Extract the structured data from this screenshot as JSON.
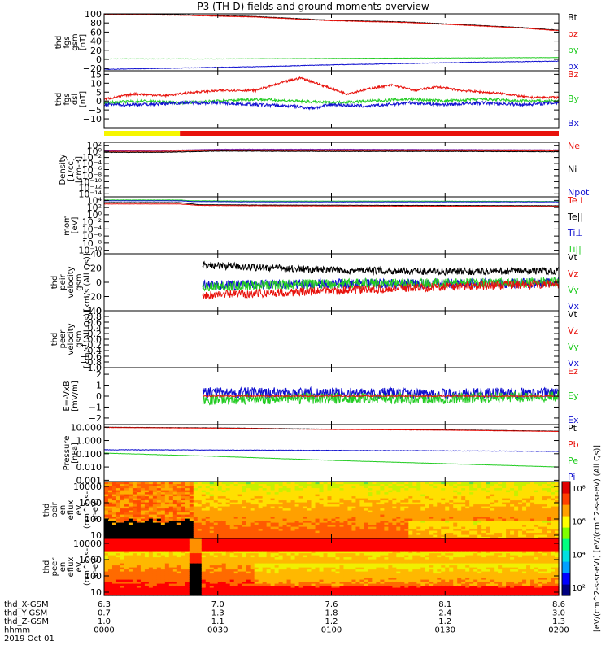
{
  "title": "P3 (TH-D) fields and ground moments overview",
  "colors": {
    "black": "#000000",
    "red": "#e8120c",
    "green": "#22cc22",
    "blue": "#1010d0",
    "yellow": "#f6f600",
    "orange": "#ff9900",
    "purple": "#7a1fa2",
    "dark_red": "#b00000",
    "light_green": "#33dd33"
  },
  "chart_data": [
    {
      "id": "fgs_gsm",
      "type": "line",
      "ylabel": [
        "thd",
        "fgs",
        "gsm",
        "[nT]"
      ],
      "ylim": [
        -25,
        100
      ],
      "ticks": [
        {
          "v": 100,
          "t": "100"
        },
        {
          "v": 80,
          "t": "80"
        },
        {
          "v": 60,
          "t": "60"
        },
        {
          "v": 40,
          "t": "40"
        },
        {
          "v": 20,
          "t": "20"
        },
        {
          "v": 0,
          "t": "0"
        },
        {
          "v": -20,
          "t": "−20"
        }
      ],
      "legend": [
        {
          "name": "Bt",
          "color": "#000000"
        },
        {
          "name": "bz",
          "color": "#e8120c"
        },
        {
          "name": "by",
          "color": "#22cc22"
        },
        {
          "name": "bx",
          "color": "#1010d0"
        }
      ],
      "series": [
        {
          "color": "#000000",
          "x": [
            0,
            10,
            20,
            30,
            40,
            50,
            60,
            70,
            80,
            90,
            100,
            110,
            120
          ],
          "y": [
            99,
            99,
            98,
            96,
            94,
            90,
            86,
            84,
            82,
            78,
            74,
            70,
            64
          ],
          "noise": 0.5
        },
        {
          "color": "#e8120c",
          "x": [
            0,
            10,
            20,
            30,
            40,
            50,
            60,
            70,
            80,
            90,
            100,
            110,
            120
          ],
          "y": [
            98,
            98,
            97,
            95,
            93,
            89,
            85,
            83,
            81,
            77,
            73,
            69,
            63
          ],
          "noise": 0.5
        },
        {
          "color": "#22cc22",
          "x": [
            0,
            30,
            60,
            90,
            120
          ],
          "y": [
            1,
            1,
            2,
            3,
            4
          ],
          "noise": 0.4
        },
        {
          "color": "#1010d0",
          "x": [
            0,
            20,
            40,
            60,
            80,
            100,
            120
          ],
          "y": [
            -22,
            -19,
            -16,
            -12,
            -9,
            -6,
            -4
          ],
          "noise": 0.6
        }
      ]
    },
    {
      "id": "fgs_dsl",
      "type": "line",
      "ylabel": [
        "thd",
        "fgs",
        "dsl",
        "[nT]"
      ],
      "ylim": [
        -15,
        17
      ],
      "ticks": [
        {
          "v": 15,
          "t": "15"
        },
        {
          "v": 10,
          "t": "10"
        },
        {
          "v": 5,
          "t": "5"
        },
        {
          "v": 0,
          "t": "0"
        },
        {
          "v": -5,
          "t": "−5"
        },
        {
          "v": -10,
          "t": "−10"
        }
      ],
      "legend": [
        {
          "name": "Bz",
          "color": "#e8120c"
        },
        {
          "name": "By",
          "color": "#22cc22"
        },
        {
          "name": "Bx",
          "color": "#1010d0"
        }
      ],
      "series": [
        {
          "color": "#e8120c",
          "x": [
            0,
            8,
            16,
            24,
            32,
            40,
            48,
            52,
            56,
            60,
            64,
            70,
            76,
            82,
            88,
            94,
            100,
            106,
            112,
            120
          ],
          "y": [
            1,
            4,
            3,
            5,
            6,
            6,
            11,
            13,
            10,
            7,
            4,
            7,
            9,
            6,
            8,
            6,
            5,
            4,
            2,
            2
          ],
          "noise": 0.6
        },
        {
          "color": "#22cc22",
          "x": [
            0,
            10,
            20,
            30,
            40,
            50,
            60,
            70,
            80,
            90,
            100,
            110,
            120
          ],
          "y": [
            -1,
            0,
            -1,
            0,
            1,
            0,
            -1,
            0,
            1,
            0,
            1,
            0,
            0
          ],
          "noise": 0.8
        },
        {
          "color": "#1010d0",
          "x": [
            0,
            10,
            20,
            30,
            40,
            50,
            55,
            60,
            70,
            80,
            90,
            100,
            110,
            120
          ],
          "y": [
            -2,
            -2,
            -1,
            -1,
            -2,
            -3,
            -4,
            -2,
            -3,
            -1,
            -2,
            -1,
            -2,
            -1
          ],
          "noise": 0.9
        }
      ]
    },
    {
      "id": "density",
      "type": "line",
      "log": true,
      "ylabel": [
        "Density",
        "[1/cc]",
        "[cm-3]"
      ],
      "ylim": [
        -15,
        3
      ],
      "ticks": [
        {
          "v": 2,
          "t": "10²"
        },
        {
          "v": 0,
          "t": "10⁰"
        },
        {
          "v": -2,
          "t": "10⁻²"
        },
        {
          "v": -4,
          "t": "10⁻⁴"
        },
        {
          "v": -6,
          "t": "10⁻⁶"
        },
        {
          "v": -8,
          "t": "10⁻⁸"
        },
        {
          "v": -10,
          "t": "10⁻¹⁰"
        },
        {
          "v": -12,
          "t": "10⁻¹²"
        },
        {
          "v": -14,
          "t": "10⁻¹⁴"
        }
      ],
      "legend": [
        {
          "name": "Ne",
          "color": "#e8120c"
        },
        {
          "name": "Ni",
          "color": "#000000"
        },
        {
          "name": "Npot",
          "color": "#1010d0"
        }
      ],
      "series": [
        {
          "color": "#7a1fa2",
          "x": [
            0,
            15,
            30,
            60,
            90,
            120
          ],
          "y": [
            0.2,
            0.3,
            0.7,
            0.7,
            0.6,
            0.5
          ],
          "noise": 0.06
        },
        {
          "color": "#e8120c",
          "x": [
            0,
            15,
            30,
            60,
            90,
            120
          ],
          "y": [
            0,
            0,
            0.3,
            0.3,
            0.2,
            0.2
          ],
          "noise": 0.06
        },
        {
          "color": "#000000",
          "x": [
            0,
            15,
            30,
            60,
            90,
            120
          ],
          "y": [
            -0.3,
            -0.3,
            0.1,
            0.0,
            0.0,
            -0.1
          ],
          "noise": 0.08
        }
      ]
    },
    {
      "id": "temperature",
      "type": "line",
      "log": true,
      "ylabel": [
        "mom",
        "[eV]"
      ],
      "ylim": [
        -11,
        5
      ],
      "ticks": [
        {
          "v": 4,
          "t": "10⁴"
        },
        {
          "v": 2,
          "t": "10²"
        },
        {
          "v": 0,
          "t": "10⁰"
        },
        {
          "v": -2,
          "t": "10⁻²"
        },
        {
          "v": -4,
          "t": "10⁻⁴"
        },
        {
          "v": -6,
          "t": "10⁻⁶"
        },
        {
          "v": -8,
          "t": "10⁻⁸"
        },
        {
          "v": -10,
          "t": "10⁻¹⁰"
        }
      ],
      "legend": [
        {
          "name": "Te⊥",
          "color": "#e8120c"
        },
        {
          "name": "Te||",
          "color": "#000000"
        },
        {
          "name": "Ti⊥",
          "color": "#1010d0"
        },
        {
          "name": "Ti||",
          "color": "#22cc22"
        }
      ],
      "series": [
        {
          "color": "#22cc22",
          "x": [
            0,
            20,
            23,
            40,
            80,
            120
          ],
          "y": [
            4.1,
            4.1,
            3.9,
            3.8,
            3.8,
            3.7
          ],
          "noise": 0.04
        },
        {
          "color": "#1010d0",
          "x": [
            0,
            20,
            23,
            40,
            80,
            120
          ],
          "y": [
            3.9,
            3.9,
            3.7,
            3.6,
            3.6,
            3.6
          ],
          "noise": 0.04
        },
        {
          "color": "#000000",
          "x": [
            0,
            20,
            25,
            40,
            80,
            120
          ],
          "y": [
            3.4,
            3.4,
            2.8,
            2.7,
            2.6,
            2.5
          ],
          "noise": 0.04
        },
        {
          "color": "#e8120c",
          "x": [
            0,
            20,
            25,
            40,
            80,
            120
          ],
          "y": [
            3.0,
            3.0,
            2.6,
            2.5,
            2.4,
            2.3
          ],
          "noise": 0.04
        }
      ]
    },
    {
      "id": "peir_velocity",
      "type": "line",
      "ylabel": [
        "thd",
        "peir",
        "velocity",
        "gsm",
        "[km/s (All Qs)]"
      ],
      "ylim": [
        -40,
        40
      ],
      "ticks": [
        {
          "v": 40,
          "t": "40"
        },
        {
          "v": 20,
          "t": "20"
        },
        {
          "v": 0,
          "t": "0"
        },
        {
          "v": -20,
          "t": "−20"
        },
        {
          "v": -40,
          "t": "−40"
        }
      ],
      "legend": [
        {
          "name": "Vt",
          "color": "#000000"
        },
        {
          "name": "Vz",
          "color": "#e8120c"
        },
        {
          "name": "Vy",
          "color": "#22cc22"
        },
        {
          "name": "Vx",
          "color": "#1010d0"
        }
      ],
      "series": [
        {
          "color": "#1010d0",
          "x": [
            26,
            60,
            90,
            120
          ],
          "y": [
            -4,
            -2,
            -2,
            -1
          ],
          "noise": 7,
          "start": 26
        },
        {
          "color": "#22cc22",
          "x": [
            26,
            60,
            90,
            120
          ],
          "y": [
            -6,
            -2,
            -1,
            0
          ],
          "noise": 7,
          "start": 26
        },
        {
          "color": "#000000",
          "x": [
            26,
            60,
            90,
            120
          ],
          "y": [
            24,
            17,
            15,
            16
          ],
          "noise": 5,
          "start": 26
        },
        {
          "color": "#e8120c",
          "x": [
            26,
            60,
            90,
            120
          ],
          "y": [
            -18,
            -12,
            -6,
            -2
          ],
          "noise": 6,
          "start": 26
        }
      ]
    },
    {
      "id": "peer_velocity",
      "type": "line",
      "ylabel": [
        "thd",
        "peer",
        "velocity",
        "gsm",
        "[km/s (All Qs)]"
      ],
      "ylim": [
        -1,
        1
      ],
      "ticks": [
        {
          "v": 1,
          "t": "1.0"
        },
        {
          "v": 0.8,
          "t": "0.8"
        },
        {
          "v": 0.6,
          "t": "0.6"
        },
        {
          "v": 0.4,
          "t": "0.4"
        },
        {
          "v": 0.2,
          "t": "0.2"
        },
        {
          "v": 0,
          "t": "0.0"
        },
        {
          "v": -0.2,
          "t": "−0.2"
        },
        {
          "v": -0.4,
          "t": "−0.4"
        },
        {
          "v": -0.6,
          "t": "−0.6"
        },
        {
          "v": -0.8,
          "t": "−0.8"
        },
        {
          "v": -1,
          "t": "−1.0"
        }
      ],
      "legend": [
        {
          "name": "Vt",
          "color": "#000000"
        },
        {
          "name": "Vz",
          "color": "#e8120c"
        },
        {
          "name": "Vy",
          "color": "#22cc22"
        },
        {
          "name": "Vx",
          "color": "#1010d0"
        }
      ],
      "series": []
    },
    {
      "id": "exb",
      "type": "line",
      "ylabel": [
        "E=-VxB",
        "[mV/m]"
      ],
      "ylim": [
        -2.6,
        2.6
      ],
      "ticks": [
        {
          "v": 2,
          "t": "2"
        },
        {
          "v": 1,
          "t": "1"
        },
        {
          "v": 0,
          "t": "0"
        },
        {
          "v": -1,
          "t": "−1"
        },
        {
          "v": -2,
          "t": "−2"
        }
      ],
      "legend": [
        {
          "name": "Ez",
          "color": "#e8120c"
        },
        {
          "name": "Ey",
          "color": "#22cc22"
        },
        {
          "name": "Ex",
          "color": "#1010d0"
        }
      ],
      "series": [
        {
          "color": "#1010d0",
          "x": [
            26,
            60,
            90,
            120
          ],
          "y": [
            0.3,
            0.3,
            0.2,
            0.3
          ],
          "noise": 0.5,
          "start": 26
        },
        {
          "color": "#22cc22",
          "x": [
            26,
            60,
            90,
            120
          ],
          "y": [
            -0.3,
            -0.2,
            -0.2,
            0
          ],
          "noise": 0.5,
          "start": 26
        },
        {
          "color": "#e8120c",
          "x": [
            26,
            60,
            90,
            120
          ],
          "y": [
            0,
            0,
            0,
            0
          ],
          "noise": 0.05,
          "start": 26
        }
      ]
    },
    {
      "id": "pressure",
      "type": "line",
      "log": true,
      "ylabel": [
        "Pressure",
        "[nPa]"
      ],
      "ylim": [
        -3.1,
        1.2
      ],
      "ticks": [
        {
          "v": 1,
          "t": "10.000"
        },
        {
          "v": 0,
          "t": "1.000"
        },
        {
          "v": -1,
          "t": "0.100"
        },
        {
          "v": -2,
          "t": "0.010"
        },
        {
          "v": -3,
          "t": "0.001"
        }
      ],
      "legend": [
        {
          "name": "Pt",
          "color": "#000000"
        },
        {
          "name": "Pb",
          "color": "#e8120c"
        },
        {
          "name": "Pe",
          "color": "#22cc22"
        },
        {
          "name": "Pi",
          "color": "#1010d0"
        }
      ],
      "series": [
        {
          "color": "#000000",
          "x": [
            0,
            30,
            60,
            90,
            120
          ],
          "y": [
            1.0,
            0.95,
            0.85,
            0.8,
            0.7
          ],
          "noise": 0.01
        },
        {
          "color": "#e8120c",
          "x": [
            0,
            30,
            60,
            90,
            120
          ],
          "y": [
            0.98,
            0.93,
            0.83,
            0.78,
            0.68
          ],
          "noise": 0.01
        },
        {
          "color": "#1010d0",
          "x": [
            0,
            30,
            60,
            90,
            120
          ],
          "y": [
            -0.7,
            -0.72,
            -0.75,
            -0.78,
            -0.82
          ],
          "noise": 0.02
        },
        {
          "color": "#22cc22",
          "x": [
            0,
            30,
            60,
            90,
            120
          ],
          "y": [
            -0.95,
            -1.2,
            -1.5,
            -1.75,
            -2.0
          ],
          "noise": 0.01
        }
      ]
    },
    {
      "id": "peir_spec",
      "type": "heatmap",
      "log": true,
      "ylabel": [
        "thd",
        "peir",
        "en",
        "eflux",
        "eV",
        "(cm^2-s-",
        "sr-eV)"
      ],
      "ylim": [
        0.8,
        4.3
      ],
      "ticks": [
        {
          "v": 4,
          "t": "10000"
        },
        {
          "v": 3,
          "t": "1000"
        },
        {
          "v": 2,
          "t": "100"
        },
        {
          "v": 1,
          "t": "10"
        }
      ]
    },
    {
      "id": "peer_spec",
      "type": "heatmap",
      "log": true,
      "ylabel": [
        "thd",
        "peer",
        "en",
        "eflux",
        "eV",
        "(cm^2-s-",
        "sr-eV)"
      ],
      "ylim": [
        0.8,
        4.3
      ],
      "ticks": [
        {
          "v": 4,
          "t": "10000"
        },
        {
          "v": 3,
          "t": "1000"
        },
        {
          "v": 2,
          "t": "100"
        },
        {
          "v": 1,
          "t": "10"
        }
      ]
    }
  ],
  "colorbar": {
    "ticks": [
      {
        "v": 8,
        "t": "10⁸"
      },
      {
        "v": 6,
        "t": "10⁶"
      },
      {
        "v": 4,
        "t": "10⁴"
      },
      {
        "v": 2,
        "t": "10²"
      }
    ],
    "range": [
      1.5,
      8.4
    ],
    "label": "[eV/(cm^2-s-sr-eV)] [eV/(cm^2-s-sr-eV) (All Qs)]"
  },
  "quality_bar": [
    {
      "from": 0,
      "to": 20,
      "color": "#f6f600"
    },
    {
      "from": 20,
      "to": 120,
      "color": "#e8120c"
    }
  ],
  "time_axis": {
    "range_minutes": [
      0,
      120
    ],
    "ticks": [
      0,
      30,
      60,
      90,
      120
    ],
    "rows": [
      {
        "label": "thd_X-GSM",
        "values": [
          "6.3",
          "7.0",
          "7.6",
          "8.1",
          "8.6"
        ]
      },
      {
        "label": "thd_Y-GSM",
        "values": [
          "0.7",
          "1.3",
          "1.8",
          "2.4",
          "3.0"
        ]
      },
      {
        "label": "thd_Z-GSM",
        "values": [
          "1.0",
          "1.1",
          "1.2",
          "1.2",
          "1.3"
        ]
      },
      {
        "label": "hhmm",
        "values": [
          "0000",
          "0030",
          "0100",
          "0130",
          "0200"
        ]
      }
    ],
    "date": "2019 Oct 01"
  }
}
